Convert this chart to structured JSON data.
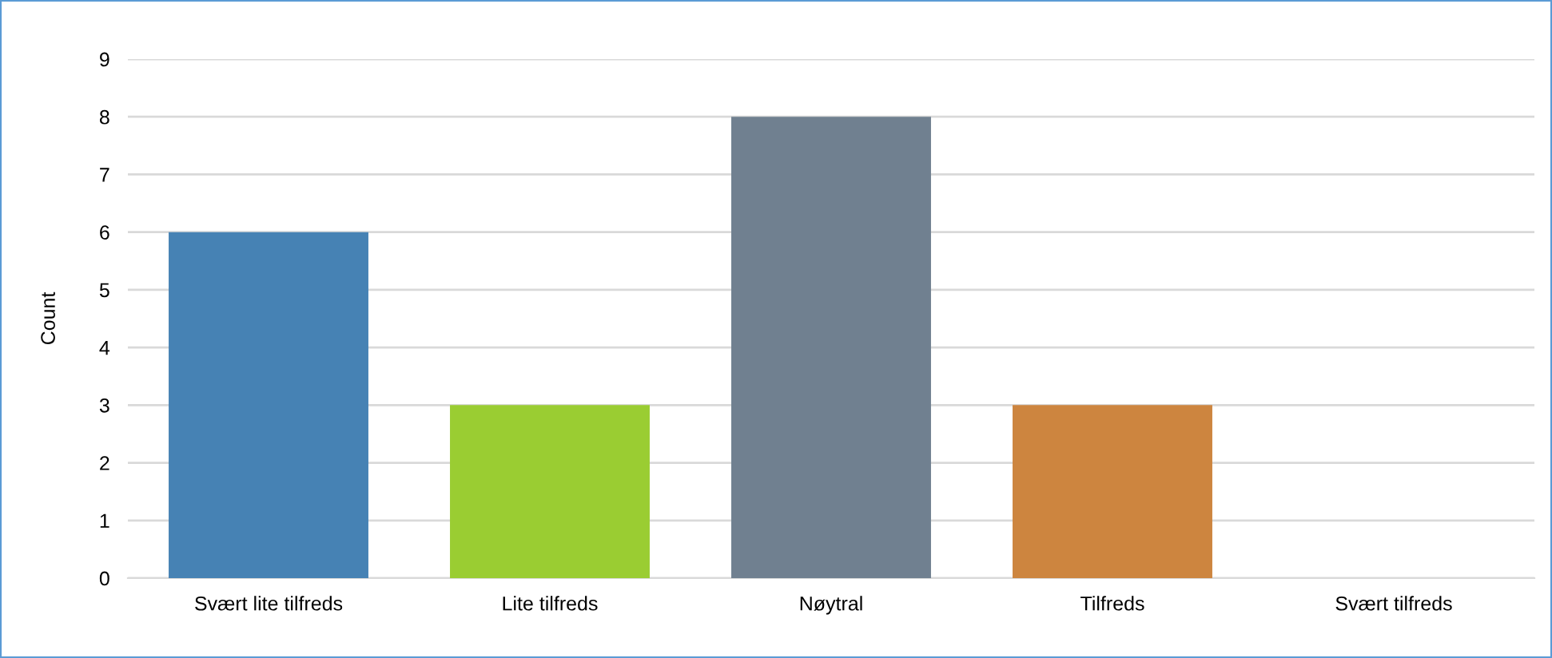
{
  "chart_data": {
    "type": "bar",
    "ylabel": "Count",
    "categories": [
      "Svært lite tilfreds",
      "Lite tilfreds",
      "Nøytral",
      "Tilfreds",
      "Svært tilfreds"
    ],
    "values": [
      6,
      3,
      8,
      3,
      0
    ],
    "colors": [
      "#4682b4",
      "#9acd32",
      "#708090",
      "#cd853f",
      "#8fbc8f"
    ],
    "ylim": [
      0,
      9
    ],
    "yticks": [
      0,
      1,
      2,
      3,
      4,
      5,
      6,
      7,
      8,
      9
    ],
    "grid": "y"
  }
}
